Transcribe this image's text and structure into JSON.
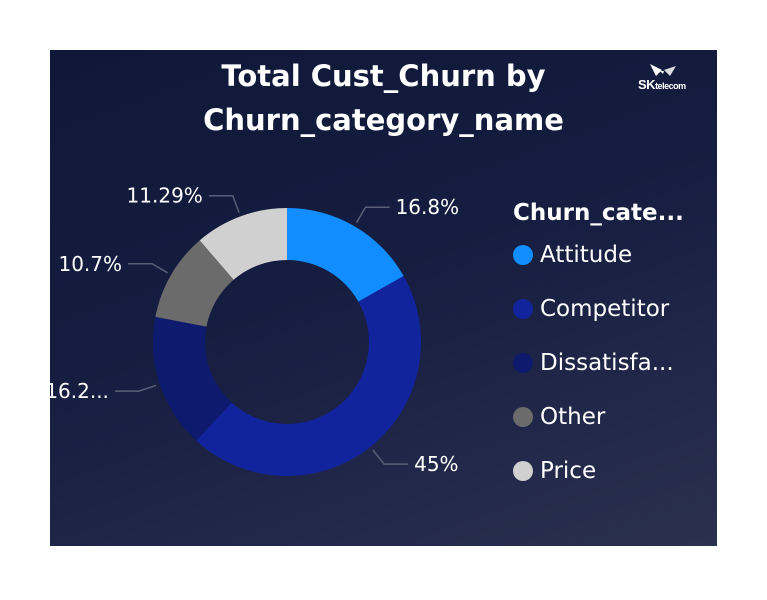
{
  "logo": {
    "text_main": "SK",
    "text_small": "telecom"
  },
  "chart_data": {
    "type": "pie",
    "donut": true,
    "title": "Total Cust_Churn by Churn_category_name",
    "title_lines": [
      "Total Cust_Churn by",
      "Churn_category_name"
    ],
    "legend_title": "Churn_cate...",
    "legend_position": "right",
    "slices": [
      {
        "name": "Attitude",
        "legend_label": "Attitude",
        "value": 16.8,
        "data_label": "16.8%",
        "color": "#118dff"
      },
      {
        "name": "Competitor",
        "legend_label": "Competitor",
        "value": 45.0,
        "data_label": "45%",
        "color": "#12239e"
      },
      {
        "name": "Dissatisfaction",
        "legend_label": "Dissatisfa...",
        "value": 16.2,
        "data_label": "16.2...",
        "color": "#0e1a6e"
      },
      {
        "name": "Other",
        "legend_label": "Other",
        "value": 10.7,
        "data_label": "10.7%",
        "color": "#6b6b6b"
      },
      {
        "name": "Price",
        "legend_label": "Price",
        "value": 11.29,
        "data_label": "11.29%",
        "color": "#d0d0d0"
      }
    ]
  }
}
